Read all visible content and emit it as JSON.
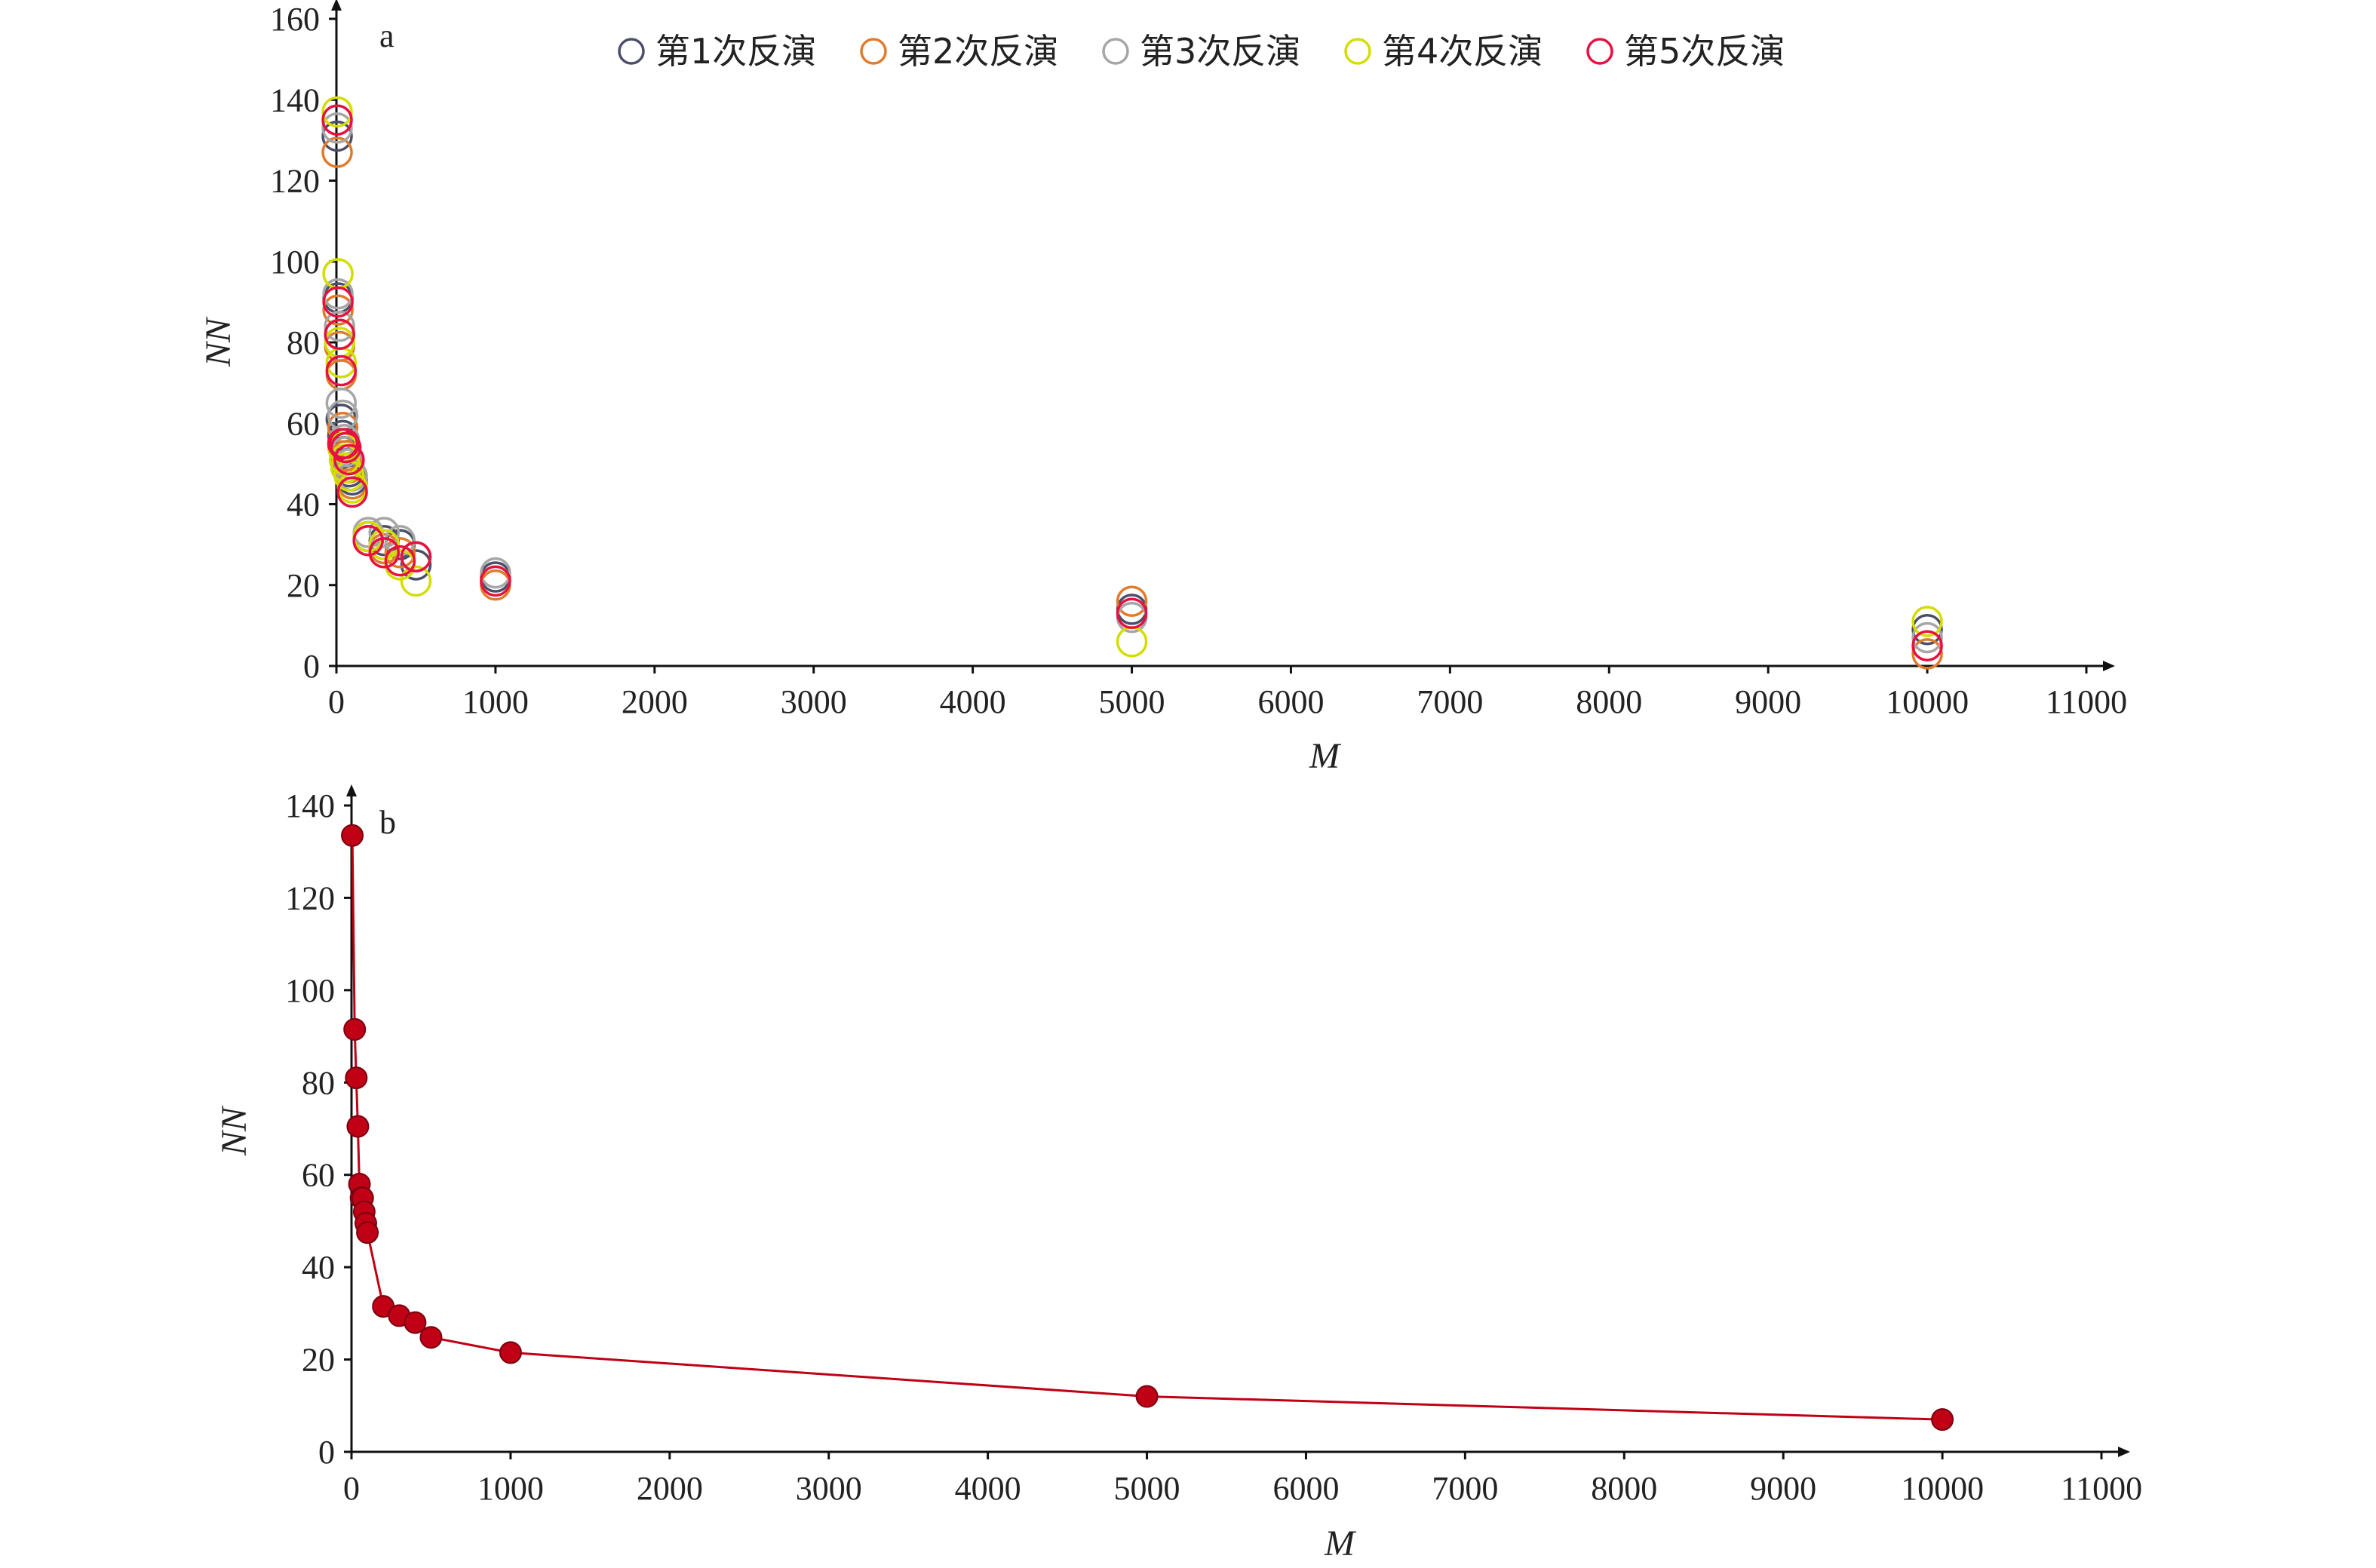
{
  "chart_data": [
    {
      "panel": "a",
      "type": "scatter",
      "xlabel": "M",
      "ylabel": "NN",
      "xlim": [
        0,
        11000
      ],
      "ylim": [
        0,
        160
      ],
      "xticks": [
        0,
        1000,
        2000,
        3000,
        4000,
        5000,
        6000,
        7000,
        8000,
        9000,
        10000,
        11000
      ],
      "yticks": [
        0,
        20,
        40,
        60,
        80,
        100,
        120,
        140,
        160
      ],
      "grid": false,
      "legend_position": "top",
      "series": [
        {
          "name": "第1次反演",
          "color": "#4a4f6a",
          "points": [
            [
              5,
              131
            ],
            [
              10,
              91
            ],
            [
              20,
              82
            ],
            [
              30,
              61
            ],
            [
              40,
              57
            ],
            [
              50,
              53
            ],
            [
              60,
              51
            ],
            [
              80,
              48
            ],
            [
              100,
              46
            ],
            [
              200,
              32
            ],
            [
              300,
              31
            ],
            [
              400,
              30
            ],
            [
              500,
              25
            ],
            [
              1000,
              22
            ],
            [
              5000,
              14
            ],
            [
              10000,
              9
            ]
          ]
        },
        {
          "name": "第2次反演",
          "color": "#e07b2c",
          "points": [
            [
              5,
              127
            ],
            [
              10,
              88
            ],
            [
              20,
              79
            ],
            [
              30,
              72
            ],
            [
              40,
              59
            ],
            [
              50,
              55
            ],
            [
              60,
              52
            ],
            [
              80,
              49
            ],
            [
              100,
              45
            ],
            [
              200,
              31
            ],
            [
              300,
              29
            ],
            [
              400,
              28
            ],
            [
              500,
              27
            ],
            [
              1000,
              20
            ],
            [
              5000,
              16
            ],
            [
              10000,
              3
            ]
          ]
        },
        {
          "name": "第3次反演",
          "color": "#a6a6a6",
          "points": [
            [
              5,
              133
            ],
            [
              10,
              92
            ],
            [
              20,
              84
            ],
            [
              30,
              65
            ],
            [
              40,
              62
            ],
            [
              50,
              56
            ],
            [
              60,
              53
            ],
            [
              80,
              50
            ],
            [
              100,
              47
            ],
            [
              200,
              33
            ],
            [
              300,
              33
            ],
            [
              400,
              31
            ],
            [
              500,
              27
            ],
            [
              1000,
              23
            ],
            [
              5000,
              12
            ],
            [
              10000,
              7
            ]
          ]
        },
        {
          "name": "第4次反演",
          "color": "#d4dd00",
          "points": [
            [
              5,
              137
            ],
            [
              10,
              97
            ],
            [
              20,
              80
            ],
            [
              30,
              75
            ],
            [
              40,
              54
            ],
            [
              50,
              51
            ],
            [
              60,
              49
            ],
            [
              80,
              47
            ],
            [
              100,
              44
            ],
            [
              200,
              32
            ],
            [
              300,
              30
            ],
            [
              400,
              25
            ],
            [
              500,
              21
            ],
            [
              1000,
              21
            ],
            [
              5000,
              6
            ],
            [
              10000,
              11
            ]
          ]
        },
        {
          "name": "第5次反演",
          "color": "#e8103f",
          "points": [
            [
              5,
              135
            ],
            [
              10,
              90
            ],
            [
              20,
              82
            ],
            [
              30,
              73
            ],
            [
              40,
              55
            ],
            [
              50,
              55
            ],
            [
              60,
              54
            ],
            [
              80,
              51
            ],
            [
              100,
              43
            ],
            [
              200,
              31
            ],
            [
              300,
              28
            ],
            [
              400,
              26
            ],
            [
              500,
              27
            ],
            [
              1000,
              21
            ],
            [
              5000,
              13
            ],
            [
              10000,
              5
            ]
          ]
        }
      ]
    },
    {
      "panel": "b",
      "type": "line",
      "xlabel": "M",
      "ylabel": "NN",
      "xlim": [
        0,
        11000
      ],
      "ylim": [
        0,
        140
      ],
      "xticks": [
        0,
        1000,
        2000,
        3000,
        4000,
        5000,
        6000,
        7000,
        8000,
        9000,
        10000,
        11000
      ],
      "yticks": [
        0,
        20,
        40,
        60,
        80,
        100,
        120,
        140
      ],
      "grid": false,
      "series": [
        {
          "color": "#c00015",
          "marker_color": "#c00015",
          "points": [
            [
              5,
              133.5
            ],
            [
              20,
              91.5
            ],
            [
              30,
              81
            ],
            [
              40,
              70.5
            ],
            [
              50,
              58
            ],
            [
              60,
              55
            ],
            [
              70,
              55
            ],
            [
              80,
              52
            ],
            [
              90,
              49.5
            ],
            [
              100,
              47.5
            ],
            [
              200,
              31.5
            ],
            [
              300,
              29.5
            ],
            [
              400,
              28
            ],
            [
              500,
              24.8
            ],
            [
              1000,
              21.5
            ],
            [
              5000,
              12
            ],
            [
              10000,
              7
            ]
          ]
        }
      ]
    }
  ]
}
